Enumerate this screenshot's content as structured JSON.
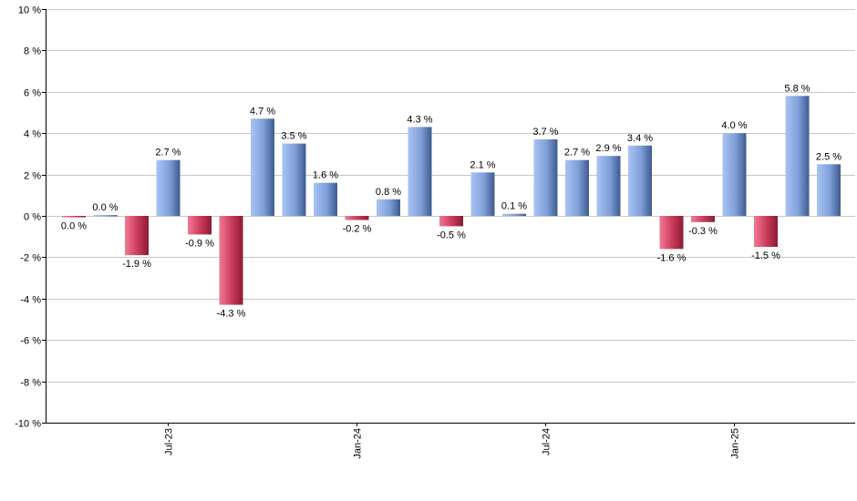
{
  "chart_data": {
    "type": "bar",
    "title": "",
    "xlabel": "",
    "ylabel": "",
    "ylim": [
      -10,
      10
    ],
    "y_ticks": [
      10,
      8,
      6,
      4,
      2,
      0,
      -2,
      -4,
      -6,
      -8,
      -10
    ],
    "y_tick_labels": [
      "10 %",
      "8 %",
      "6 %",
      "4 %",
      "2 %",
      "0 %",
      "-2 %",
      "-4 %",
      "-6 %",
      "-8 %",
      "-10 %"
    ],
    "grid": true,
    "legend": "none",
    "x_tick_labels": [
      {
        "label": "Jul-23",
        "bar_index": 3
      },
      {
        "label": "Jan-24",
        "bar_index": 9
      },
      {
        "label": "Jul-24",
        "bar_index": 15
      },
      {
        "label": "Jan-25",
        "bar_index": 21
      }
    ],
    "values": [
      -0.04,
      0.04,
      -1.9,
      2.7,
      -0.9,
      -4.3,
      4.7,
      3.5,
      1.6,
      -0.2,
      0.8,
      4.3,
      -0.5,
      2.1,
      0.1,
      3.7,
      2.7,
      2.9,
      3.4,
      -1.6,
      -0.3,
      4.0,
      -1.5,
      5.8,
      2.5
    ],
    "labels": [
      "0.0 %",
      "0.0 %",
      "-1.9 %",
      "2.7 %",
      "-0.9 %",
      "-4.3 %",
      "4.7 %",
      "3.5 %",
      "1.6 %",
      "-0.2 %",
      "0.8 %",
      "4.3 %",
      "-0.5 %",
      "2.1 %",
      "0.1 %",
      "3.7 %",
      "2.7 %",
      "2.9 %",
      "3.4 %",
      "-1.6 %",
      "-0.3 %",
      "4.0 %",
      "-1.5 %",
      "5.8 %",
      "2.5 %"
    ],
    "colors": {
      "positive_light": "#a9c4f5",
      "positive_dark": "#3d5a8f",
      "negative_light": "#f07a95",
      "negative_dark": "#8c1a33",
      "grid": "#c8c8c8",
      "axis": "#000000"
    }
  }
}
